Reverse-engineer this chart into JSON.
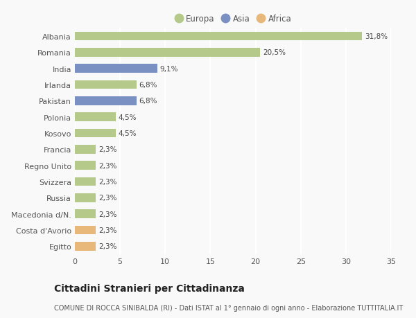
{
  "categories": [
    "Egitto",
    "Costa d'Avorio",
    "Macedonia d/N.",
    "Russia",
    "Svizzera",
    "Regno Unito",
    "Francia",
    "Kosovo",
    "Polonia",
    "Pakistan",
    "Irlanda",
    "India",
    "Romania",
    "Albania"
  ],
  "values": [
    2.3,
    2.3,
    2.3,
    2.3,
    2.3,
    2.3,
    2.3,
    4.5,
    4.5,
    6.8,
    6.8,
    9.1,
    20.5,
    31.8
  ],
  "labels": [
    "2,3%",
    "2,3%",
    "2,3%",
    "2,3%",
    "2,3%",
    "2,3%",
    "2,3%",
    "4,5%",
    "4,5%",
    "6,8%",
    "6,8%",
    "9,1%",
    "20,5%",
    "31,8%"
  ],
  "colors": [
    "#e8b87a",
    "#e8b87a",
    "#b5c98a",
    "#b5c98a",
    "#b5c98a",
    "#b5c98a",
    "#b5c98a",
    "#b5c98a",
    "#b5c98a",
    "#7a8fc2",
    "#b5c98a",
    "#7a8fc2",
    "#b5c98a",
    "#b5c98a"
  ],
  "legend_labels": [
    "Europa",
    "Asia",
    "Africa"
  ],
  "legend_colors": [
    "#b5c98a",
    "#7a8fc2",
    "#e8b87a"
  ],
  "title": "Cittadini Stranieri per Cittadinanza",
  "subtitle": "COMUNE DI ROCCA SINIBALDA (RI) - Dati ISTAT al 1° gennaio di ogni anno - Elaborazione TUTTITALIA.IT",
  "xlim": [
    0,
    35
  ],
  "xticks": [
    0,
    5,
    10,
    15,
    20,
    25,
    30,
    35
  ],
  "background_color": "#f9f9f9",
  "plot_bg_color": "#f0f2ee",
  "bar_height": 0.55,
  "title_fontsize": 10,
  "subtitle_fontsize": 7,
  "label_fontsize": 7.5,
  "tick_fontsize": 8,
  "legend_fontsize": 8.5,
  "grid_color": "#ffffff",
  "text_color": "#555555",
  "label_color": "#444444"
}
